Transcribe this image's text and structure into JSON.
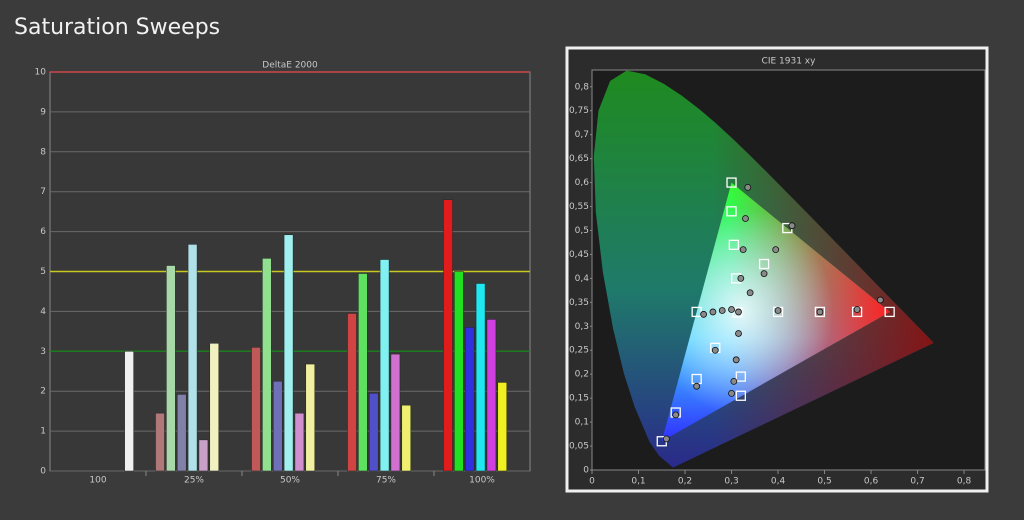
{
  "title": "Saturation Sweeps",
  "chart_data": [
    {
      "type": "bar",
      "title": "DeltaE 2000",
      "categories": [
        "100",
        "25%",
        "50%",
        "75%",
        "100%"
      ],
      "series": [
        {
          "colors": [
            null,
            "#b07878",
            "#c05858",
            "#d04444",
            "#e01c1c"
          ],
          "values": [
            null,
            1.45,
            3.1,
            3.95,
            6.8
          ]
        },
        {
          "colors": [
            null,
            "#a8d8a8",
            "#90e090",
            "#60e060",
            "#20e020"
          ],
          "values": [
            null,
            5.15,
            5.33,
            4.95,
            5.0
          ]
        },
        {
          "colors": [
            null,
            "#8080a8",
            "#7070b8",
            "#5050c8",
            "#3030e0"
          ],
          "values": [
            null,
            1.92,
            2.25,
            1.95,
            3.6
          ]
        },
        {
          "colors": [
            null,
            "#b0e0e8",
            "#a0f0f0",
            "#80f0f0",
            "#20e8f0"
          ],
          "values": [
            null,
            5.68,
            5.92,
            5.3,
            4.7
          ]
        },
        {
          "colors": [
            null,
            "#c8a0c8",
            "#d090d0",
            "#d070d0",
            "#d040e0"
          ],
          "values": [
            null,
            0.78,
            1.45,
            2.93,
            3.8
          ]
        },
        {
          "colors": [
            null,
            "#f0f0c0",
            "#f0f0a0",
            "#f0f070",
            "#f0f020"
          ],
          "values": [
            null,
            3.2,
            2.68,
            1.65,
            2.22
          ]
        },
        {
          "colors": [
            "#f0f0f0",
            null,
            null,
            null,
            null
          ],
          "values": [
            3.0,
            null,
            null,
            null,
            null
          ]
        }
      ],
      "ylim": [
        0,
        10
      ],
      "yticks": [
        0,
        1,
        2,
        3,
        4,
        5,
        6,
        7,
        8,
        9,
        10
      ],
      "grid": true,
      "reference_lines": [
        {
          "value": 10,
          "color": "#d04848"
        },
        {
          "value": 5,
          "color": "#c8c820"
        },
        {
          "value": 3,
          "color": "#1e7a1e"
        }
      ]
    },
    {
      "type": "scatter",
      "title": "CIE 1931 xy",
      "xlim": [
        0,
        0.845
      ],
      "ylim": [
        0,
        0.835
      ],
      "xticks": [
        0,
        {
          "value": 0.1,
          "label": "0,1"
        },
        {
          "value": 0.2,
          "label": "0,2"
        },
        {
          "value": 0.3,
          "label": "0,3"
        },
        {
          "value": 0.4,
          "label": "0,4"
        },
        {
          "value": 0.5,
          "label": "0,5"
        },
        {
          "value": 0.6,
          "label": "0,6"
        },
        {
          "value": 0.7,
          "label": "0,7"
        },
        {
          "value": 0.8,
          "label": "0,8"
        }
      ],
      "yticks": [
        0,
        {
          "value": 0.05,
          "label": "0,05"
        },
        {
          "value": 0.1,
          "label": "0,1"
        },
        {
          "value": 0.15,
          "label": "0,15"
        },
        {
          "value": 0.2,
          "label": "0,2"
        },
        {
          "value": 0.25,
          "label": "0,25"
        },
        {
          "value": 0.3,
          "label": "0,3"
        },
        {
          "value": 0.35,
          "label": "0,35"
        },
        {
          "value": 0.4,
          "label": "0,4"
        },
        {
          "value": 0.45,
          "label": "0,45"
        },
        {
          "value": 0.5,
          "label": "0,5"
        },
        {
          "value": 0.55,
          "label": "0,55"
        },
        {
          "value": 0.6,
          "label": "0,6"
        },
        {
          "value": 0.65,
          "label": "0,65"
        },
        {
          "value": 0.7,
          "label": "0,7"
        },
        {
          "value": 0.75,
          "label": "0,75"
        },
        {
          "value": 0.8,
          "label": "0,8"
        }
      ],
      "targets": {
        "color": "#ffffff",
        "x": [
          0.3127,
          0.64,
          0.57,
          0.49,
          0.4,
          0.3,
          0.3,
          0.305,
          0.31,
          0.15,
          0.18,
          0.225,
          0.265,
          0.225,
          0.32,
          0.32,
          0.42,
          0.37
        ],
        "y": [
          0.329,
          0.33,
          0.33,
          0.33,
          0.33,
          0.6,
          0.54,
          0.47,
          0.4,
          0.06,
          0.12,
          0.19,
          0.255,
          0.33,
          0.155,
          0.195,
          0.505,
          0.43
        ]
      },
      "measurements": {
        "color": "#8a8a8a",
        "x": [
          0.315,
          0.62,
          0.57,
          0.49,
          0.4,
          0.335,
          0.33,
          0.325,
          0.32,
          0.16,
          0.18,
          0.225,
          0.265,
          0.24,
          0.26,
          0.28,
          0.3,
          0.3,
          0.305,
          0.31,
          0.315,
          0.43,
          0.395,
          0.37,
          0.34
        ],
        "y": [
          0.33,
          0.355,
          0.335,
          0.33,
          0.333,
          0.59,
          0.525,
          0.46,
          0.4,
          0.065,
          0.115,
          0.175,
          0.25,
          0.325,
          0.33,
          0.333,
          0.335,
          0.16,
          0.185,
          0.23,
          0.285,
          0.51,
          0.46,
          0.41,
          0.37
        ]
      }
    }
  ]
}
